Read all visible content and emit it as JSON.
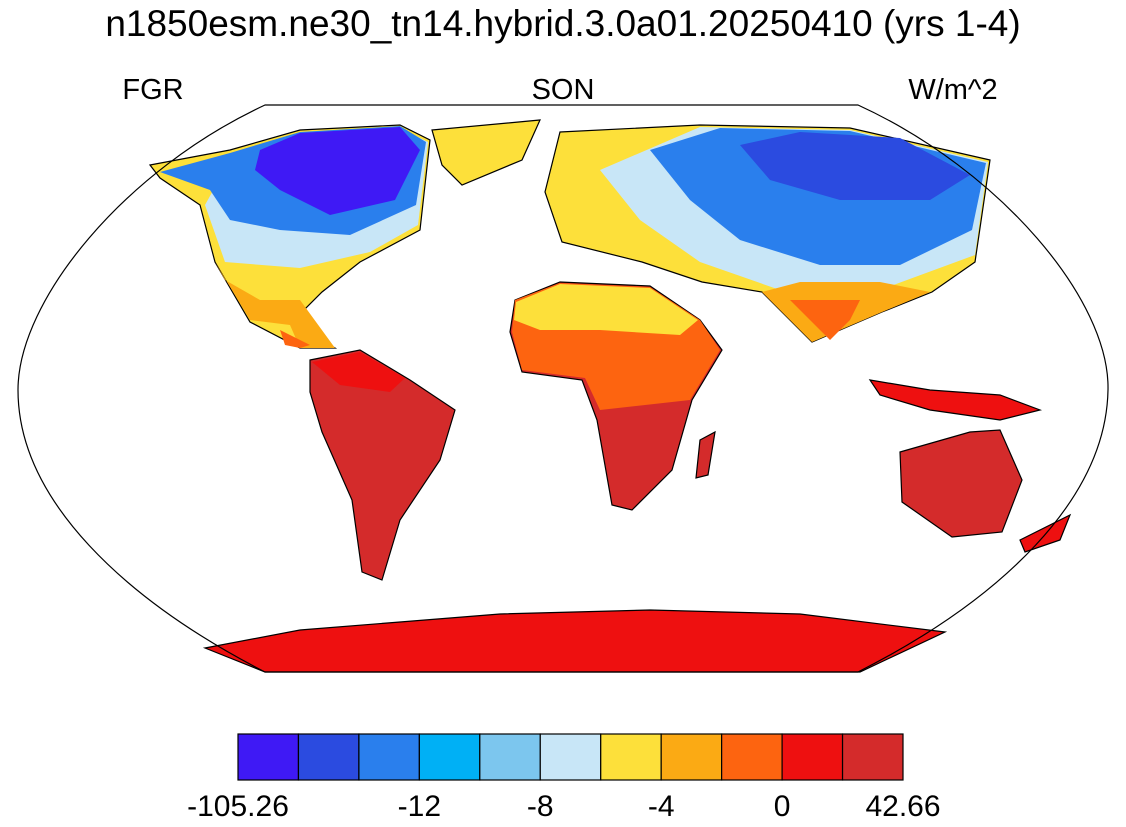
{
  "title": "n1850esm.ne30_tn14.hybrid.3.0a01.20250410 (yrs 1-4)",
  "left_string": "FGR",
  "center_string": "SON",
  "right_string": "W/m^2",
  "colorbar": {
    "colors": [
      "#3f19f5",
      "#2b4be0",
      "#2a7fed",
      "#00b0f5",
      "#7cc6ee",
      "#c8e6f7",
      "#fde03a",
      "#fbaa14",
      "#fd6410",
      "#ee1010",
      "#d42b2b"
    ],
    "labels": [
      "-105.26",
      "-12",
      "-8",
      "-4",
      "0",
      "42.66"
    ]
  }
}
